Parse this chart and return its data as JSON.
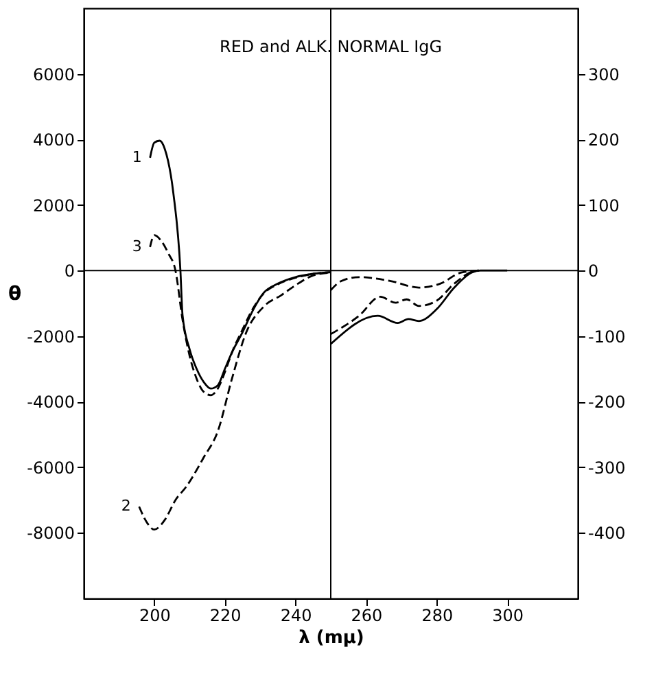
{
  "chart_data": {
    "type": "line",
    "title": "RED and ALK. NORMAL IgG",
    "xlabel": "λ (mμ)",
    "ylabel": "θ",
    "xlim": [
      180,
      320
    ],
    "xticks": [
      200,
      220,
      240,
      260,
      280,
      300
    ],
    "ylim": [
      -10000,
      8000
    ],
    "yticks": [
      -8000,
      -6000,
      -4000,
      -2000,
      0,
      2000,
      4000,
      6000
    ],
    "y2lim": [
      -500,
      400
    ],
    "y2ticks": [
      -400,
      -300,
      -200,
      -100,
      0,
      100,
      200,
      300
    ],
    "grid": false,
    "marker": "none",
    "ref_lines": [
      {
        "axis": "y",
        "value": 0,
        "color": "#000000"
      },
      {
        "axis": "x",
        "value": 250,
        "color": "#000000"
      }
    ],
    "series": [
      {
        "name": "1",
        "color": "#000000",
        "line_style": "solid",
        "x": [
          198.8,
          200,
          201.5,
          203,
          205.4,
          207.4,
          208,
          210,
          212,
          214,
          216,
          218,
          220,
          222,
          225,
          228,
          231,
          235,
          240,
          245,
          250
        ],
        "values": [
          3440,
          3900,
          3960,
          3700,
          2360,
          0,
          -1360,
          -2400,
          -3000,
          -3400,
          -3600,
          -3500,
          -3000,
          -2500,
          -1880,
          -1200,
          -680,
          -400,
          -200,
          -100,
          -50
        ]
      },
      {
        "name": "2",
        "color": "#000000",
        "line_style": "dashed",
        "x": [
          195.7,
          198,
          200,
          203,
          206,
          209,
          214,
          218,
          222,
          226,
          231,
          236,
          240,
          245,
          250
        ],
        "values": [
          -7200,
          -7700,
          -7900,
          -7600,
          -7000,
          -6600,
          -5700,
          -4900,
          -3300,
          -1900,
          -1100,
          -750,
          -450,
          -150,
          -60
        ]
      },
      {
        "name": "3",
        "color": "#000000",
        "line_style": "dashed",
        "x": [
          198.8,
          200,
          202,
          204,
          206,
          208,
          210,
          212,
          214,
          216,
          218,
          220,
          222,
          225,
          228,
          231,
          235,
          240,
          245,
          250
        ],
        "values": [
          720,
          1080,
          900,
          520,
          0,
          -1500,
          -2600,
          -3300,
          -3700,
          -3800,
          -3600,
          -3100,
          -2500,
          -1800,
          -1150,
          -700,
          -420,
          -220,
          -100,
          -50
        ]
      },
      {
        "color": "#000000",
        "line_style": "solid",
        "axis": "y2",
        "x": [
          250,
          263.3,
          269,
          272,
          275,
          280,
          285,
          290,
          292.4,
          300
        ],
        "values": [
          -112,
          -69,
          -80,
          -74,
          -77,
          -59,
          -26,
          -3,
          0,
          0
        ]
      },
      {
        "color": "#000000",
        "line_style": "dashed",
        "axis": "y2",
        "x": [
          250,
          253,
          258,
          267,
          275,
          281,
          287,
          292
        ],
        "values": [
          -30,
          -16,
          -10,
          -16,
          -26,
          -20,
          -3,
          0
        ]
      },
      {
        "color": "#000000",
        "line_style": "dashed",
        "axis": "y2",
        "x": [
          250,
          258,
          264,
          268.4,
          271.5,
          275,
          280,
          285,
          290.5,
          292
        ],
        "values": [
          -97,
          -69,
          -40,
          -49,
          -44,
          -54,
          -46,
          -20,
          -1,
          0
        ]
      }
    ]
  }
}
